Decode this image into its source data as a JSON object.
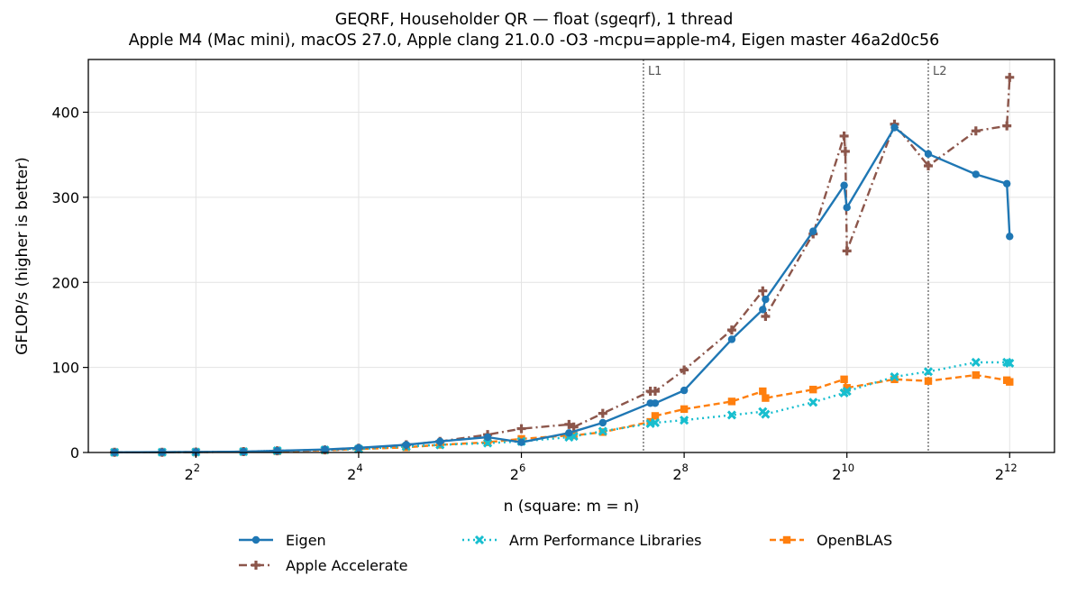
{
  "chart_data": {
    "type": "line",
    "title": "GEQRF, Householder QR — float (sgeqrf), 1 thread",
    "subtitle": "Apple M4 (Mac mini), macOS 27.0, Apple clang 21.0.0 -O3 -mcpu=apple-m4, Eigen master 46a2d0c56",
    "xlabel": "n (square: m = n)",
    "ylabel": "GFLOP/s (higher is better)",
    "x_scale": "log2",
    "xlim": [
      1.6,
      6000
    ],
    "ylim": [
      0,
      462
    ],
    "x_ticks": [
      {
        "value": 4,
        "base": "2",
        "exp": "2"
      },
      {
        "value": 16,
        "base": "2",
        "exp": "4"
      },
      {
        "value": 64,
        "base": "2",
        "exp": "6"
      },
      {
        "value": 256,
        "base": "2",
        "exp": "8"
      },
      {
        "value": 1024,
        "base": "2",
        "exp": "10"
      },
      {
        "value": 4096,
        "base": "2",
        "exp": "12"
      }
    ],
    "y_ticks": [
      0,
      100,
      200,
      300,
      400
    ],
    "grid": true,
    "legend_position": "bottom",
    "cache_lines": [
      {
        "label": "L1",
        "x": 181
      },
      {
        "label": "L2",
        "x": 2048
      }
    ],
    "series": [
      {
        "name": "Eigen",
        "color": "#1f77b4",
        "dash": "solid",
        "marker": "circle",
        "points": [
          [
            2,
            0.2
          ],
          [
            3,
            0.4
          ],
          [
            4,
            0.6
          ],
          [
            6,
            1
          ],
          [
            8,
            2
          ],
          [
            12,
            3.5
          ],
          [
            16,
            5.5
          ],
          [
            24,
            9
          ],
          [
            32,
            13
          ],
          [
            48,
            18
          ],
          [
            64,
            12
          ],
          [
            96,
            23
          ],
          [
            128,
            35
          ],
          [
            192,
            58
          ],
          [
            200,
            58
          ],
          [
            256,
            73
          ],
          [
            384,
            133
          ],
          [
            500,
            168
          ],
          [
            512,
            180
          ],
          [
            768,
            260
          ],
          [
            1000,
            314
          ],
          [
            1024,
            288
          ],
          [
            1536,
            382
          ],
          [
            2048,
            351
          ],
          [
            3072,
            327
          ],
          [
            4000,
            316
          ],
          [
            4096,
            254
          ]
        ]
      },
      {
        "name": "Apple Accelerate",
        "color": "#8c564b",
        "dash": "dashdot",
        "marker": "plus",
        "points": [
          [
            2,
            0.2
          ],
          [
            3,
            0.3
          ],
          [
            4,
            0.5
          ],
          [
            6,
            1
          ],
          [
            8,
            2
          ],
          [
            12,
            3
          ],
          [
            16,
            5
          ],
          [
            24,
            9
          ],
          [
            32,
            13
          ],
          [
            48,
            21
          ],
          [
            64,
            28
          ],
          [
            96,
            33
          ],
          [
            100,
            30
          ],
          [
            128,
            46
          ],
          [
            192,
            72
          ],
          [
            200,
            72
          ],
          [
            256,
            97
          ],
          [
            384,
            144
          ],
          [
            500,
            190
          ],
          [
            512,
            160
          ],
          [
            768,
            257
          ],
          [
            1000,
            372
          ],
          [
            1010,
            354
          ],
          [
            1024,
            237
          ],
          [
            1536,
            386
          ],
          [
            2048,
            337
          ],
          [
            3072,
            378
          ],
          [
            4000,
            384
          ],
          [
            4096,
            441
          ]
        ]
      },
      {
        "name": "Arm Performance Libraries",
        "color": "#17becf",
        "dash": "dotted",
        "marker": "x",
        "points": [
          [
            2,
            0.2
          ],
          [
            3,
            0.3
          ],
          [
            4,
            0.5
          ],
          [
            6,
            1
          ],
          [
            8,
            2
          ],
          [
            12,
            3
          ],
          [
            16,
            4
          ],
          [
            24,
            7
          ],
          [
            32,
            9
          ],
          [
            48,
            11
          ],
          [
            64,
            13
          ],
          [
            96,
            18
          ],
          [
            100,
            19
          ],
          [
            128,
            25
          ],
          [
            192,
            34
          ],
          [
            200,
            35
          ],
          [
            256,
            38
          ],
          [
            384,
            44
          ],
          [
            500,
            48
          ],
          [
            512,
            45
          ],
          [
            768,
            59
          ],
          [
            1000,
            70
          ],
          [
            1024,
            72
          ],
          [
            1536,
            89
          ],
          [
            2048,
            95
          ],
          [
            3072,
            106
          ],
          [
            4000,
            106
          ],
          [
            4096,
            105
          ]
        ]
      },
      {
        "name": "OpenBLAS",
        "color": "#ff7f0e",
        "dash": "dashed",
        "marker": "square",
        "points": [
          [
            2,
            0.2
          ],
          [
            3,
            0.3
          ],
          [
            4,
            0.5
          ],
          [
            6,
            1
          ],
          [
            8,
            1.5
          ],
          [
            12,
            2.5
          ],
          [
            16,
            4
          ],
          [
            24,
            6
          ],
          [
            32,
            9
          ],
          [
            48,
            12
          ],
          [
            64,
            16
          ],
          [
            96,
            20
          ],
          [
            100,
            20
          ],
          [
            128,
            24
          ],
          [
            192,
            36
          ],
          [
            200,
            43
          ],
          [
            256,
            51
          ],
          [
            384,
            60
          ],
          [
            500,
            72
          ],
          [
            512,
            64
          ],
          [
            768,
            74
          ],
          [
            1000,
            86
          ],
          [
            1024,
            76
          ],
          [
            1536,
            86
          ],
          [
            2048,
            84
          ],
          [
            3072,
            91
          ],
          [
            4000,
            85
          ],
          [
            4096,
            83
          ]
        ]
      }
    ]
  }
}
